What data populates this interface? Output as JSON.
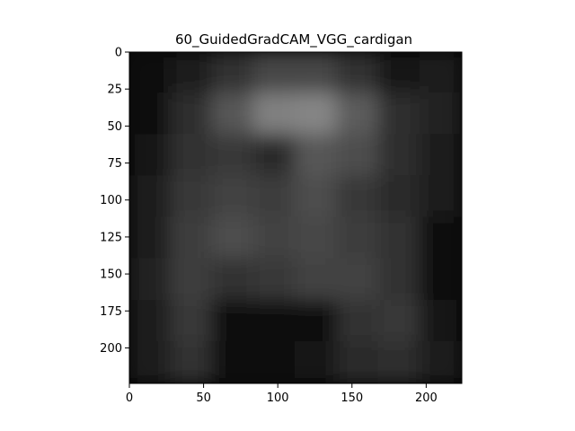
{
  "chart_data": {
    "type": "heatmap",
    "title": "60_GuidedGradCAM_VGG_cardigan",
    "xlabel": "",
    "ylabel": "",
    "xlim": [
      0,
      224
    ],
    "ylim": [
      224,
      0
    ],
    "y_axis_inverted": true,
    "xticks": [
      0,
      50,
      100,
      150,
      200
    ],
    "yticks": [
      0,
      25,
      50,
      75,
      100,
      125,
      150,
      175,
      200
    ],
    "xtick_labels": [
      "0",
      "50",
      "100",
      "150",
      "200"
    ],
    "ytick_labels": [
      "0",
      "25",
      "50",
      "75",
      "100",
      "125",
      "150",
      "175",
      "200"
    ],
    "grid": false,
    "legend": "none",
    "colormap": "grayscale (guided Grad-CAM saliency)",
    "image_content": "faint silhouette of a person in a cardigan; brightest saliency around the shoulders and collar",
    "intensity_grid": {
      "x_edges": [
        0,
        28,
        56,
        84,
        112,
        140,
        168,
        196,
        224
      ],
      "y_edges": [
        0,
        28,
        56,
        84,
        112,
        140,
        168,
        196,
        224
      ],
      "values": [
        [
          0.05,
          0.1,
          0.2,
          0.28,
          0.28,
          0.2,
          0.08,
          0.12
        ],
        [
          0.06,
          0.18,
          0.34,
          0.5,
          0.52,
          0.36,
          0.18,
          0.14
        ],
        [
          0.08,
          0.2,
          0.22,
          0.16,
          0.34,
          0.3,
          0.18,
          0.1
        ],
        [
          0.1,
          0.22,
          0.26,
          0.24,
          0.3,
          0.22,
          0.16,
          0.1
        ],
        [
          0.12,
          0.24,
          0.3,
          0.26,
          0.28,
          0.24,
          0.2,
          0.04
        ],
        [
          0.14,
          0.24,
          0.2,
          0.22,
          0.26,
          0.26,
          0.2,
          0.04
        ],
        [
          0.12,
          0.22,
          0.06,
          0.04,
          0.06,
          0.2,
          0.22,
          0.08
        ],
        [
          0.12,
          0.2,
          0.04,
          0.04,
          0.08,
          0.16,
          0.18,
          0.1
        ]
      ]
    }
  }
}
